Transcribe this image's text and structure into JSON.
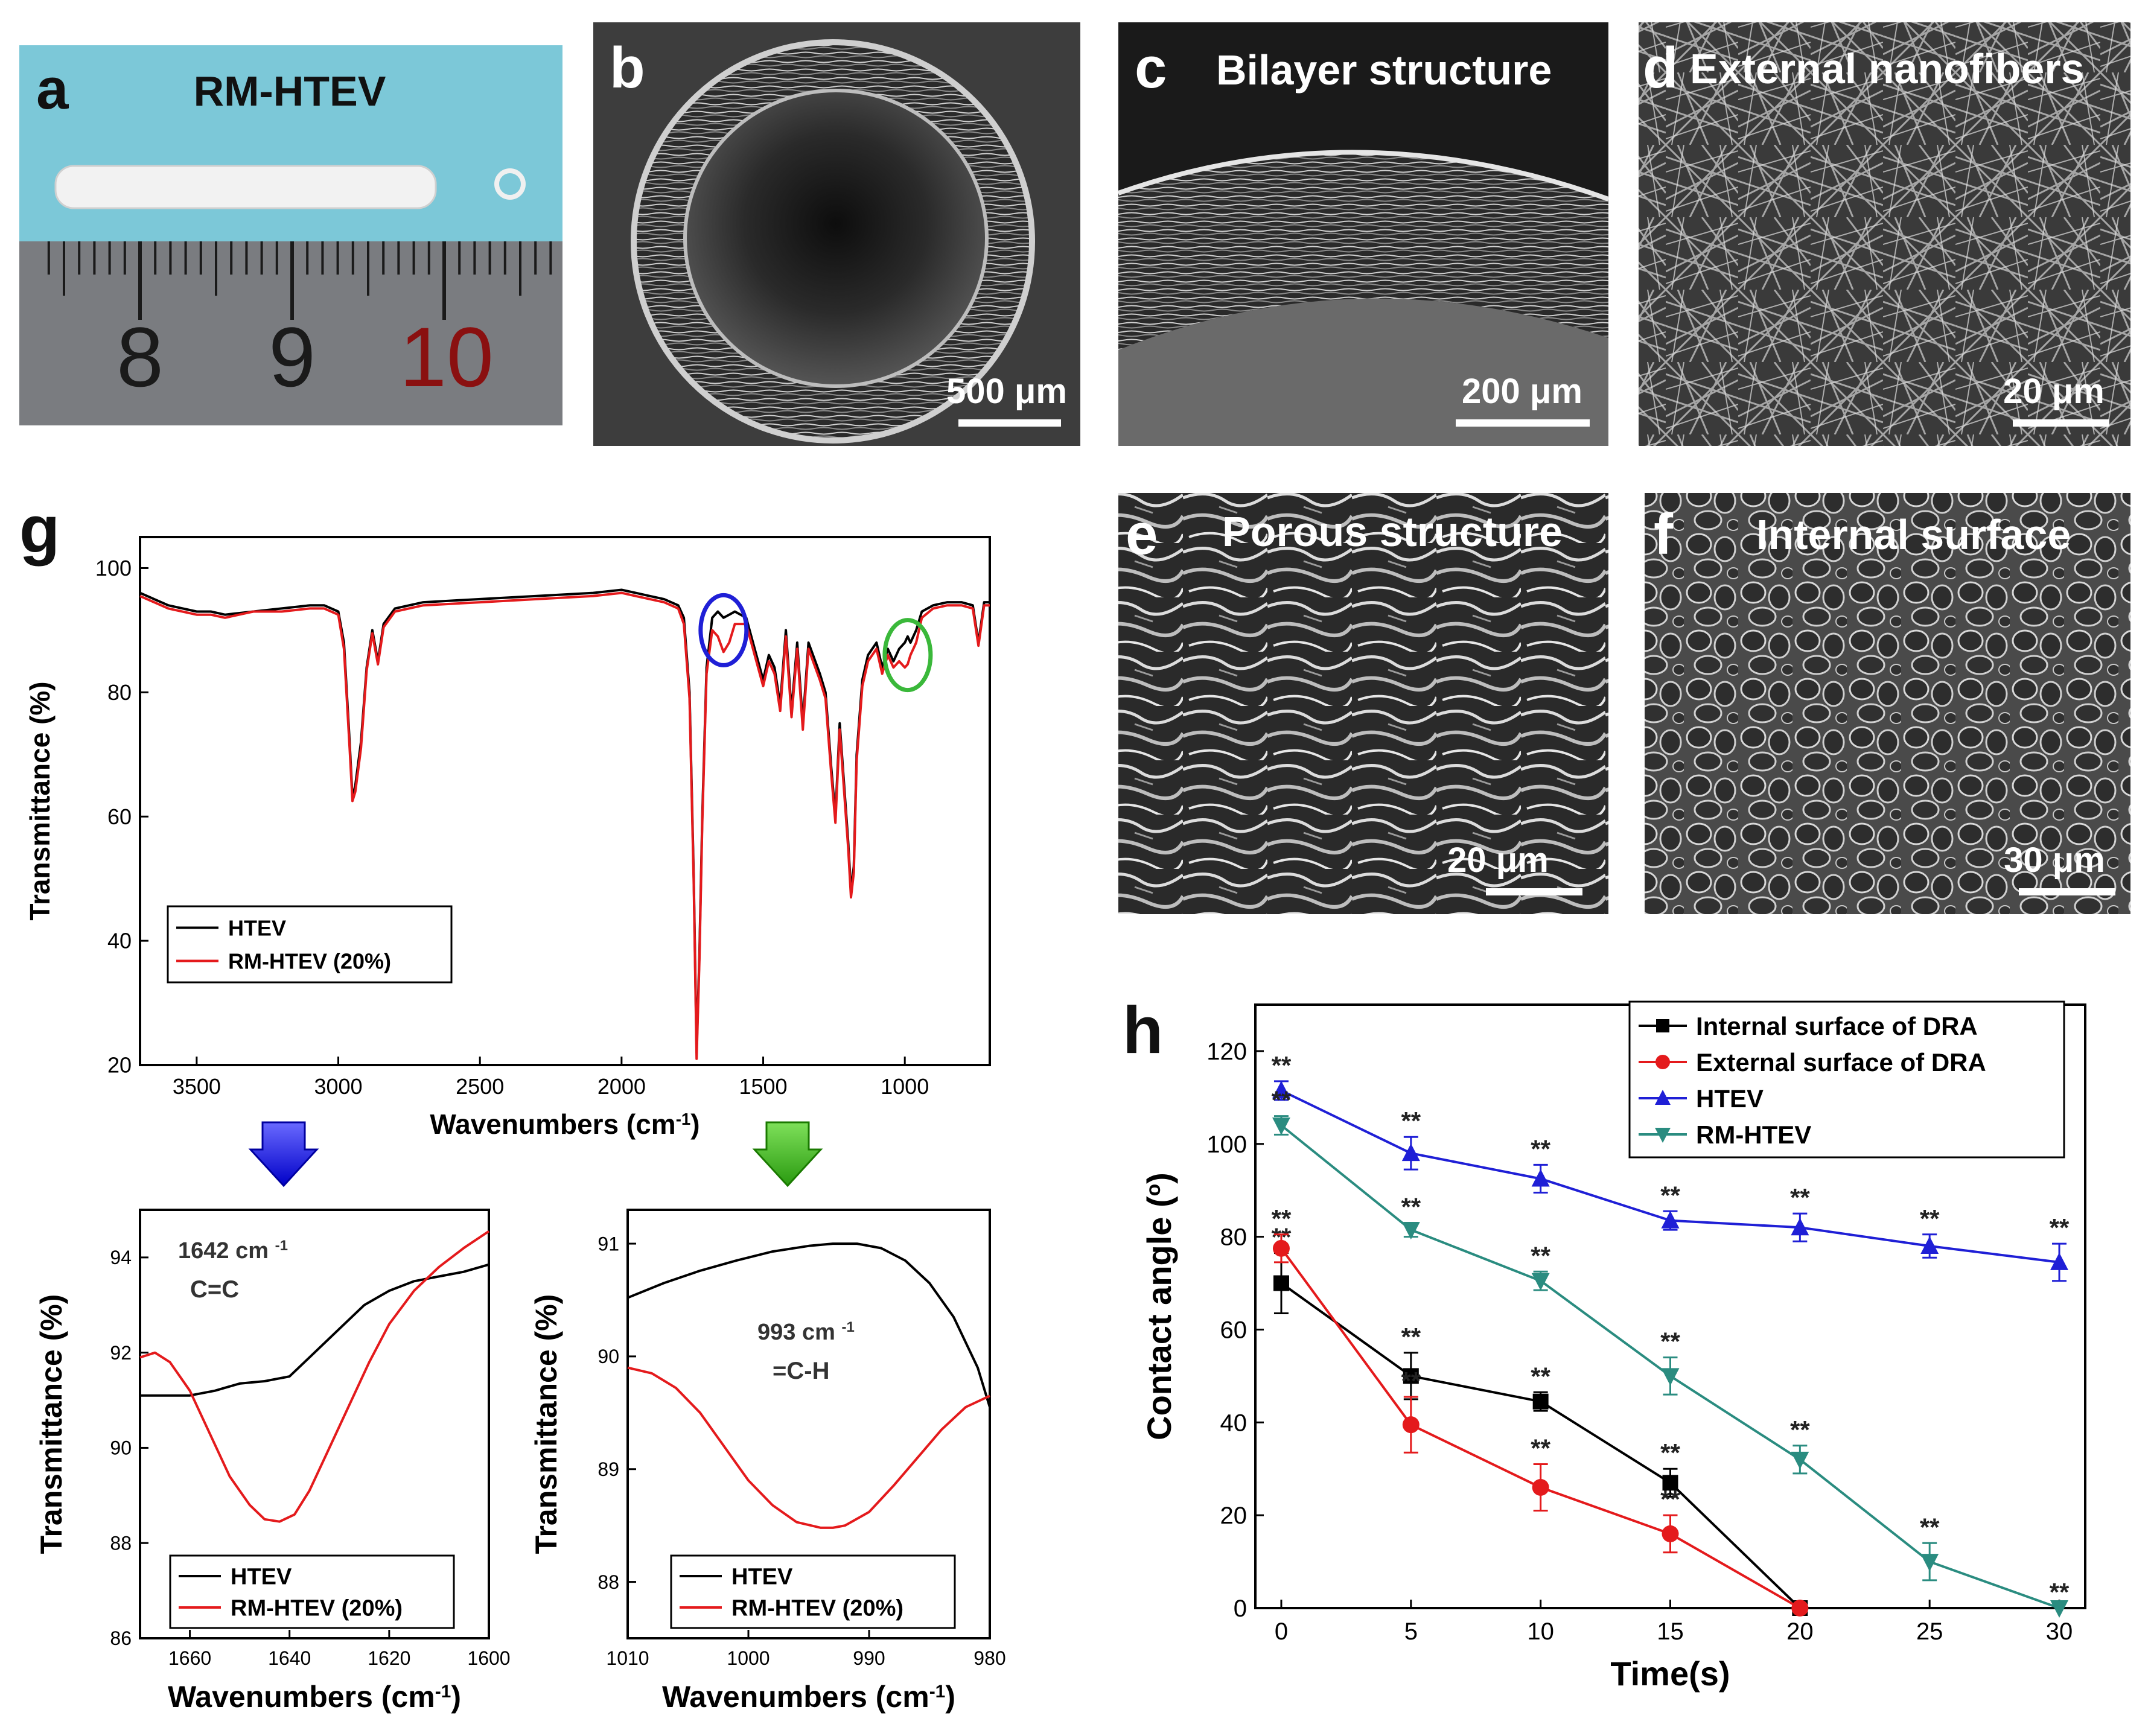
{
  "panels": {
    "a": {
      "letter": "a",
      "title": "RM-HTEV",
      "ruler": [
        "8",
        "9",
        "10"
      ]
    },
    "b": {
      "letter": "b",
      "scale": "500 μm"
    },
    "c": {
      "letter": "c",
      "title": "Bilayer structure",
      "scale": "200 μm"
    },
    "d": {
      "letter": "d",
      "title": "External nanofibers",
      "scale": "20 μm"
    },
    "e": {
      "letter": "e",
      "title": "Porous structure",
      "scale": "20 μm"
    },
    "f": {
      "letter": "f",
      "title": "Internal surface",
      "scale": "30 μm"
    },
    "g": {
      "letter": "g"
    },
    "h": {
      "letter": "h"
    }
  },
  "colors": {
    "htev": "#000000",
    "rm": "#e41a1c",
    "blue": "#1f1fd6",
    "teal": "#2a8c80",
    "skyblue": "#7cc8d8"
  },
  "chart_data": [
    {
      "id": "g_main",
      "type": "line",
      "xlabel": "Wavenumbers (cm",
      "xlabel_sup": "-1",
      "xlabel_end": ")",
      "ylabel": "Transmittance (%)",
      "xlim": [
        3700,
        700
      ],
      "ylim": [
        20,
        105
      ],
      "xticks": [
        3500,
        3000,
        2500,
        2000,
        1500,
        1000
      ],
      "yticks": [
        20,
        40,
        60,
        80,
        100
      ],
      "legend": [
        "HTEV",
        "RM-HTEV (20%)"
      ],
      "annotations": [
        "blue circle at ~1640 cm-1",
        "green circle at ~990 cm-1"
      ],
      "series": [
        {
          "name": "HTEV",
          "color": "#000000",
          "x": [
            3700,
            3600,
            3500,
            3450,
            3400,
            3300,
            3200,
            3100,
            3050,
            3000,
            2980,
            2960,
            2950,
            2940,
            2920,
            2900,
            2880,
            2860,
            2840,
            2800,
            2700,
            2500,
            2300,
            2100,
            2000,
            1950,
            1900,
            1850,
            1800,
            1780,
            1760,
            1745,
            1735,
            1725,
            1715,
            1700,
            1680,
            1660,
            1640,
            1620,
            1600,
            1560,
            1500,
            1480,
            1460,
            1440,
            1420,
            1400,
            1380,
            1360,
            1340,
            1300,
            1280,
            1260,
            1245,
            1230,
            1200,
            1190,
            1180,
            1170,
            1150,
            1130,
            1100,
            1080,
            1060,
            1040,
            1020,
            1000,
            990,
            980,
            960,
            940,
            900,
            850,
            800,
            760,
            740,
            720,
            700
          ],
          "y": [
            96,
            94,
            93,
            93,
            92.5,
            93,
            93.5,
            94,
            94,
            93,
            88,
            72,
            63,
            65,
            72,
            84,
            90,
            85,
            91,
            93.5,
            94.5,
            95,
            95.5,
            96,
            96.5,
            96,
            95.5,
            95,
            94,
            92,
            80,
            50,
            22,
            38,
            60,
            84,
            92,
            93,
            92,
            92.5,
            93,
            92,
            82,
            86,
            84,
            78,
            90,
            77,
            88,
            75,
            88,
            83,
            80,
            68,
            60,
            75,
            56,
            48,
            52,
            70,
            82,
            86,
            88,
            84,
            87,
            85,
            87,
            88,
            89,
            88,
            90,
            93,
            94,
            94.5,
            94.5,
            94,
            88,
            94.5,
            94.5
          ]
        },
        {
          "name": "RM-HTEV (20%)",
          "color": "#e41a1c",
          "x": [
            3700,
            3600,
            3500,
            3450,
            3400,
            3300,
            3200,
            3100,
            3050,
            3000,
            2980,
            2960,
            2950,
            2940,
            2920,
            2900,
            2880,
            2860,
            2840,
            2800,
            2700,
            2500,
            2300,
            2100,
            2000,
            1950,
            1900,
            1850,
            1800,
            1780,
            1760,
            1745,
            1735,
            1725,
            1715,
            1700,
            1680,
            1660,
            1640,
            1620,
            1600,
            1560,
            1500,
            1480,
            1460,
            1440,
            1420,
            1400,
            1380,
            1360,
            1340,
            1300,
            1280,
            1260,
            1245,
            1230,
            1200,
            1190,
            1180,
            1170,
            1150,
            1130,
            1100,
            1080,
            1060,
            1040,
            1020,
            1000,
            990,
            980,
            960,
            940,
            900,
            850,
            800,
            760,
            740,
            720,
            700
          ],
          "y": [
            95.5,
            93.5,
            92.5,
            92.5,
            92,
            93,
            93,
            93.5,
            93.5,
            92.5,
            87,
            71,
            62.5,
            64,
            71,
            83.5,
            89.5,
            84.5,
            90.5,
            93,
            94,
            94.5,
            95,
            95.5,
            96,
            95.5,
            95,
            94.5,
            93.5,
            91,
            79,
            49,
            21,
            37,
            59,
            83,
            90,
            89,
            86.5,
            88,
            91,
            91,
            81,
            85,
            83,
            77,
            89,
            76,
            87,
            74,
            87,
            82,
            79,
            67,
            59,
            74,
            55,
            47,
            51,
            69,
            81,
            85,
            87,
            83,
            86,
            84,
            85,
            84,
            84.5,
            86,
            88,
            92,
            93.5,
            94,
            94,
            93.5,
            87.5,
            94,
            94
          ]
        }
      ]
    },
    {
      "id": "g_inset1",
      "type": "line",
      "xlabel": "Wavenumbers (cm",
      "xlabel_sup": "-1",
      "xlabel_end": ")",
      "ylabel": "Transmittance (%)",
      "xlim": [
        1670,
        1600
      ],
      "ylim": [
        86,
        95
      ],
      "xticks": [
        1660,
        1640,
        1620,
        1600
      ],
      "yticks": [
        86,
        88,
        90,
        92,
        94
      ],
      "annotation_line1": "1642 cm",
      "annotation_sup": "-1",
      "annotation_line2": "C=C",
      "legend": [
        "HTEV",
        "RM-HTEV (20%)"
      ],
      "series": [
        {
          "name": "HTEV",
          "color": "#000000",
          "x": [
            1670,
            1665,
            1660,
            1655,
            1650,
            1645,
            1640,
            1635,
            1630,
            1625,
            1620,
            1615,
            1610,
            1605,
            1600
          ],
          "y": [
            91.1,
            91.1,
            91.1,
            91.2,
            91.35,
            91.4,
            91.5,
            92,
            92.5,
            93,
            93.3,
            93.5,
            93.6,
            93.7,
            93.85
          ]
        },
        {
          "name": "RM-HTEV (20%)",
          "color": "#e41a1c",
          "x": [
            1670,
            1667,
            1664,
            1660,
            1656,
            1652,
            1648,
            1645,
            1642,
            1639,
            1636,
            1632,
            1628,
            1624,
            1620,
            1615,
            1610,
            1605,
            1600
          ],
          "y": [
            91.9,
            92,
            91.8,
            91.2,
            90.3,
            89.4,
            88.8,
            88.5,
            88.45,
            88.6,
            89.1,
            90,
            90.9,
            91.8,
            92.6,
            93.3,
            93.8,
            94.2,
            94.55
          ]
        }
      ]
    },
    {
      "id": "g_inset2",
      "type": "line",
      "xlabel": "Wavenumbers (cm",
      "xlabel_sup": "-1",
      "xlabel_end": ")",
      "ylabel": "Transmittance (%)",
      "xlim": [
        1010,
        980
      ],
      "ylim": [
        87.5,
        91.3
      ],
      "xticks": [
        1010,
        1000,
        990,
        980
      ],
      "yticks": [
        88,
        89,
        90,
        91
      ],
      "annotation_line1": "993 cm",
      "annotation_sup": "-1",
      "annotation_line2": "=C-H",
      "legend": [
        "HTEV",
        "RM-HTEV (20%)"
      ],
      "series": [
        {
          "name": "HTEV",
          "color": "#000000",
          "x": [
            1010,
            1007,
            1004,
            1001,
            998,
            995,
            993,
            991,
            989,
            987,
            985,
            983,
            981,
            980
          ],
          "y": [
            90.52,
            90.65,
            90.76,
            90.85,
            90.93,
            90.98,
            91,
            91,
            90.96,
            90.85,
            90.65,
            90.35,
            89.9,
            89.55
          ]
        },
        {
          "name": "RM-HTEV (20%)",
          "color": "#e41a1c",
          "x": [
            1010,
            1008,
            1006,
            1004,
            1002,
            1000,
            998,
            996,
            994,
            993,
            992,
            990,
            988,
            986,
            984,
            982,
            980
          ],
          "y": [
            89.9,
            89.85,
            89.72,
            89.5,
            89.2,
            88.9,
            88.68,
            88.53,
            88.48,
            88.48,
            88.5,
            88.62,
            88.85,
            89.1,
            89.35,
            89.55,
            89.65
          ]
        }
      ]
    },
    {
      "id": "h",
      "type": "line",
      "xlabel": "Time(s)",
      "ylabel": "Contact angle (",
      "ylabel_sup": "o",
      "ylabel_end": ")",
      "xlim": [
        -1,
        31
      ],
      "ylim": [
        0,
        130
      ],
      "xticks": [
        0,
        5,
        10,
        15,
        20,
        25,
        30
      ],
      "yticks": [
        0,
        20,
        40,
        60,
        80,
        100,
        120
      ],
      "significance": "**",
      "series": [
        {
          "name": "Internal surface of DRA",
          "color": "#000000",
          "marker": "square",
          "x": [
            0,
            5,
            10,
            15,
            20
          ],
          "y": [
            70,
            50,
            44.5,
            27,
            0
          ],
          "err": [
            6.5,
            5,
            2,
            3,
            0
          ],
          "sig": [
            true,
            true,
            true,
            true,
            false
          ]
        },
        {
          "name": "External surface of DRA",
          "color": "#e41a1c",
          "marker": "circle",
          "x": [
            0,
            5,
            10,
            15,
            20
          ],
          "y": [
            77.5,
            39.5,
            26,
            16,
            0
          ],
          "err": [
            3,
            6,
            5,
            4,
            0
          ],
          "sig": [
            true,
            true,
            true,
            true,
            false
          ]
        },
        {
          "name": "HTEV",
          "color": "#1f1fd6",
          "marker": "triangle-up",
          "x": [
            0,
            5,
            10,
            15,
            20,
            25,
            30
          ],
          "y": [
            111.5,
            98,
            92.5,
            83.5,
            82,
            78,
            74.5
          ],
          "err": [
            2,
            3.5,
            3,
            2,
            3,
            2.5,
            4
          ],
          "sig": [
            true,
            true,
            true,
            true,
            true,
            true,
            true
          ]
        },
        {
          "name": "RM-HTEV",
          "color": "#2a8c80",
          "marker": "triangle-down",
          "x": [
            0,
            5,
            10,
            15,
            20,
            25,
            30
          ],
          "y": [
            104,
            81.5,
            70.5,
            50,
            32,
            10,
            0
          ],
          "err": [
            2,
            1.5,
            2,
            4,
            3,
            4,
            0
          ],
          "sig": [
            true,
            true,
            true,
            true,
            true,
            true,
            true
          ]
        }
      ]
    }
  ]
}
